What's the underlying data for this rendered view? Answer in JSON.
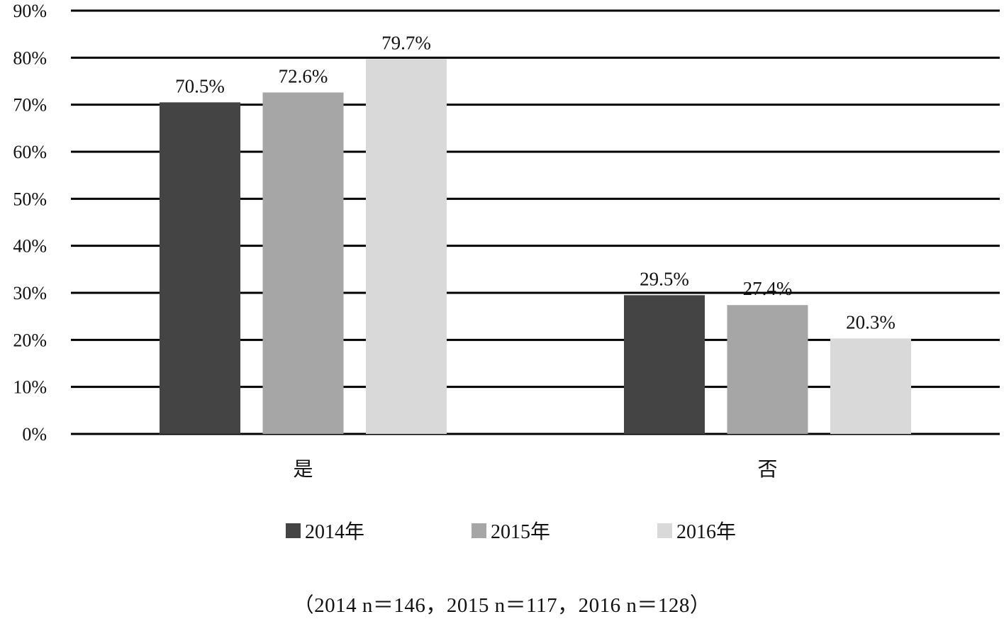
{
  "chart_data": {
    "type": "bar",
    "categories": [
      "是",
      "否"
    ],
    "series": [
      {
        "name": "2014年",
        "values": [
          70.5,
          29.5
        ],
        "color": "#444444"
      },
      {
        "name": "2015年",
        "values": [
          72.6,
          27.4
        ],
        "color": "#a6a6a6"
      },
      {
        "name": "2016年",
        "values": [
          79.7,
          20.3
        ],
        "color": "#d9d9d9"
      }
    ],
    "data_labels": [
      [
        "70.5%",
        "29.5%"
      ],
      [
        "72.6%",
        "27.4%"
      ],
      [
        "79.7%",
        "20.3%"
      ]
    ],
    "ylim": [
      0,
      90
    ],
    "yticks": [
      "0%",
      "10%",
      "20%",
      "30%",
      "40%",
      "50%",
      "60%",
      "70%",
      "80%",
      "90%"
    ],
    "grid": true,
    "legend_position": "bottom",
    "title": "",
    "xlabel": "",
    "ylabel": ""
  },
  "note": "（2014  n＝146，2015  n＝117，2016  n＝128）"
}
